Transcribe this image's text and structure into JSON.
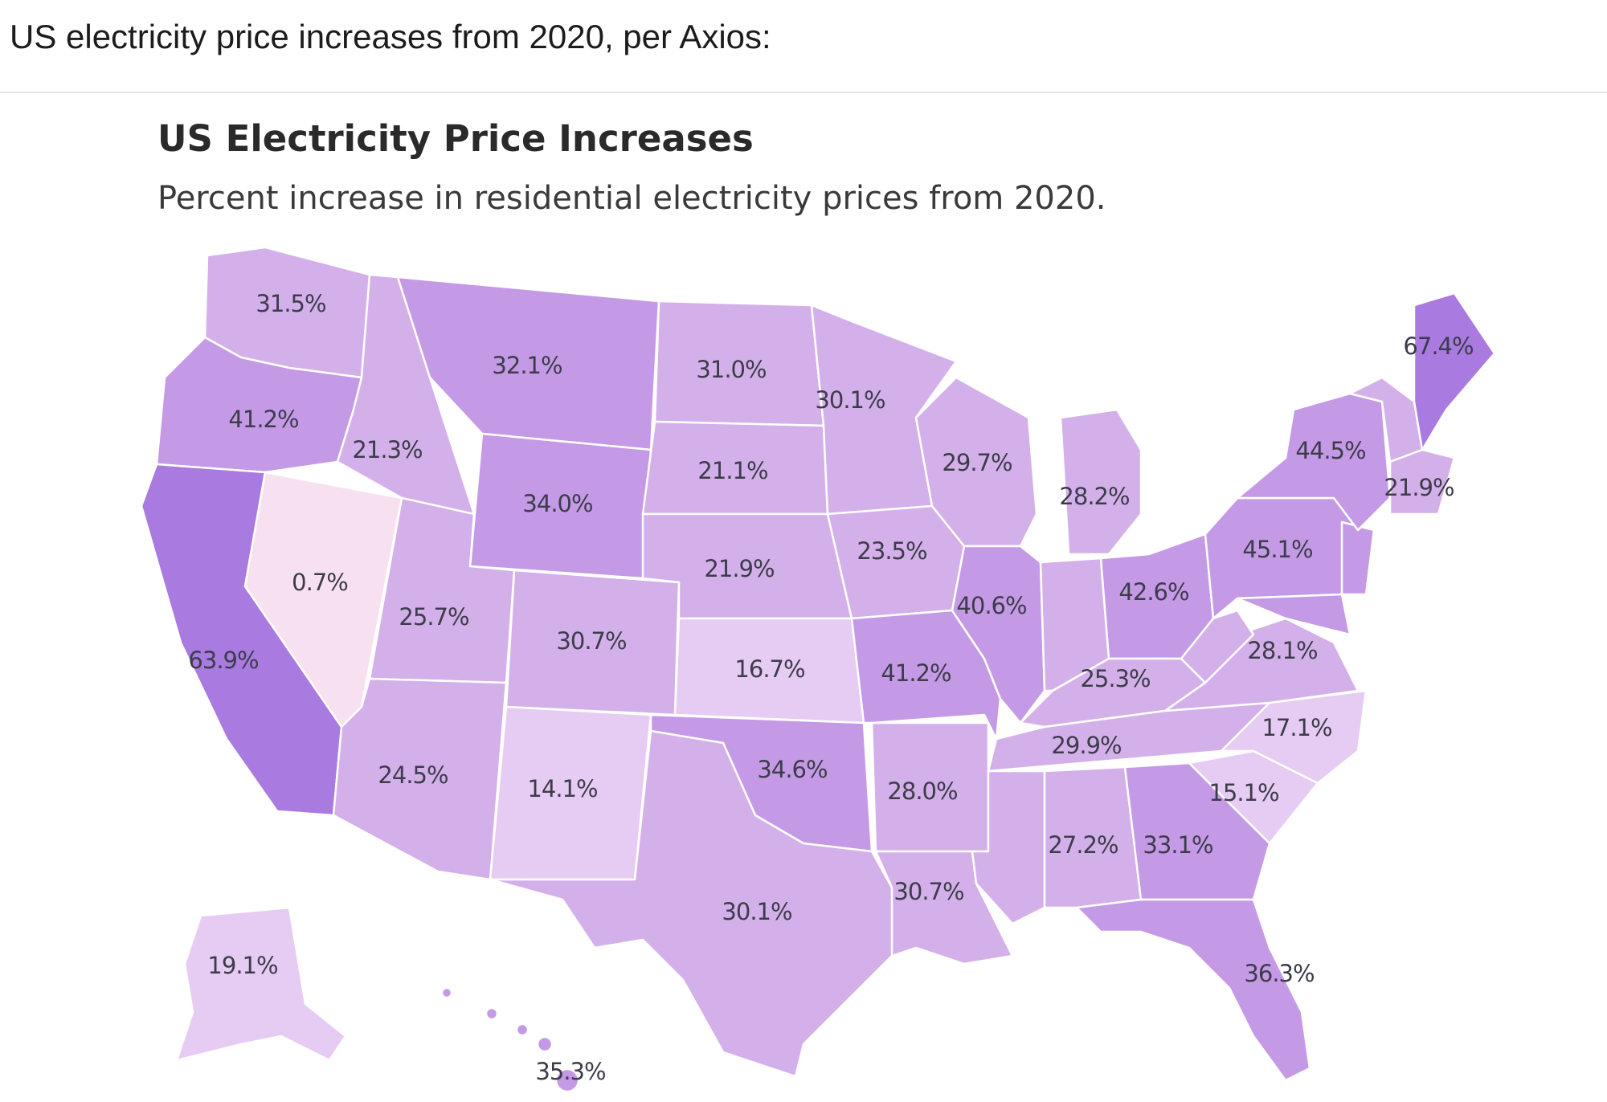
{
  "post": {
    "text": "US electricity price increases from 2020, per Axios:"
  },
  "map": {
    "title": "US Electricity Price Increases",
    "subtitle": "Percent increase in residential electricity prices from 2020."
  },
  "colors": {
    "lightest": "#f7e1f1",
    "light": "#e6cbf2",
    "mid": "#d4b0ea",
    "midDark": "#c49ae6",
    "dark": "#a97ae0"
  },
  "chart_data": {
    "type": "choropleth",
    "title": "US Electricity Price Increases",
    "subtitle": "Percent increase in residential electricity prices from 2020.",
    "unit": "%",
    "states": [
      {
        "state": "Washington",
        "label": "31.5%",
        "value": 31.5
      },
      {
        "state": "Oregon",
        "label": "41.2%",
        "value": 41.2
      },
      {
        "state": "California",
        "label": "63.9%",
        "value": 63.9
      },
      {
        "state": "Nevada",
        "label": "0.7%",
        "value": 0.7
      },
      {
        "state": "Idaho",
        "label": "21.3%",
        "value": 21.3
      },
      {
        "state": "Montana",
        "label": "32.1%",
        "value": 32.1
      },
      {
        "state": "Wyoming",
        "label": "34.0%",
        "value": 34.0
      },
      {
        "state": "Utah",
        "label": "25.7%",
        "value": 25.7
      },
      {
        "state": "Arizona",
        "label": "24.5%",
        "value": 24.5
      },
      {
        "state": "Colorado",
        "label": "30.7%",
        "value": 30.7
      },
      {
        "state": "New Mexico",
        "label": "14.1%",
        "value": 14.1
      },
      {
        "state": "North Dakota",
        "label": "31.0%",
        "value": 31.0
      },
      {
        "state": "South Dakota",
        "label": "21.1%",
        "value": 21.1
      },
      {
        "state": "Nebraska",
        "label": "21.9%",
        "value": 21.9
      },
      {
        "state": "Kansas",
        "label": "16.7%",
        "value": 16.7
      },
      {
        "state": "Oklahoma",
        "label": "34.6%",
        "value": 34.6
      },
      {
        "state": "Texas",
        "label": "30.1%",
        "value": 30.1
      },
      {
        "state": "Minnesota",
        "label": "30.1%",
        "value": 30.1
      },
      {
        "state": "Iowa",
        "label": "23.5%",
        "value": 23.5
      },
      {
        "state": "Missouri",
        "label": "41.2%",
        "value": 41.2
      },
      {
        "state": "Arkansas",
        "label": "28.0%",
        "value": 28.0
      },
      {
        "state": "Louisiana",
        "label": "30.7%",
        "value": 30.7
      },
      {
        "state": "Wisconsin",
        "label": "29.7%",
        "value": 29.7
      },
      {
        "state": "Illinois",
        "label": "40.6%",
        "value": 40.6
      },
      {
        "state": "Michigan",
        "label": "28.2%",
        "value": 28.2
      },
      {
        "state": "Ohio",
        "label": "42.6%",
        "value": 42.6
      },
      {
        "state": "Kentucky",
        "label": "25.3%",
        "value": 25.3
      },
      {
        "state": "Tennessee",
        "label": "29.9%",
        "value": 29.9
      },
      {
        "state": "Alabama",
        "label": "27.2%",
        "value": 27.2
      },
      {
        "state": "Georgia",
        "label": "33.1%",
        "value": 33.1
      },
      {
        "state": "Florida",
        "label": "36.3%",
        "value": 36.3
      },
      {
        "state": "South Carolina",
        "label": "15.1%",
        "value": 15.1
      },
      {
        "state": "North Carolina",
        "label": "17.1%",
        "value": 17.1
      },
      {
        "state": "Virginia",
        "label": "28.1%",
        "value": 28.1
      },
      {
        "state": "Pennsylvania",
        "label": "45.1%",
        "value": 45.1
      },
      {
        "state": "New York",
        "label": "44.5%",
        "value": 44.5
      },
      {
        "state": "Massachusetts",
        "label": "21.9%",
        "value": 21.9
      },
      {
        "state": "Maine",
        "label": "67.4%",
        "value": 67.4
      },
      {
        "state": "Alaska",
        "label": "19.1%",
        "value": 19.1
      },
      {
        "state": "Hawaii",
        "label": "35.3%",
        "value": 35.3
      }
    ]
  }
}
